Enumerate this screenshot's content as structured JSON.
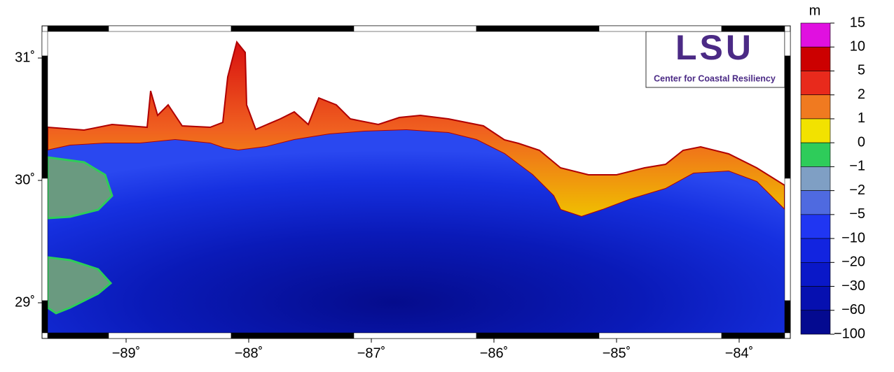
{
  "map": {
    "lon_ticks": [
      {
        "value": -89,
        "label": "−89˚"
      },
      {
        "value": -88,
        "label": "−88˚"
      },
      {
        "value": -87,
        "label": "−87˚"
      },
      {
        "value": -86,
        "label": "−86˚"
      },
      {
        "value": -85,
        "label": "−85˚"
      },
      {
        "value": -84,
        "label": "−84˚"
      }
    ],
    "lat_ticks": [
      {
        "value": 31,
        "label": "31˚"
      },
      {
        "value": 30,
        "label": "30˚"
      },
      {
        "value": 29,
        "label": "29˚"
      }
    ]
  },
  "colorbar": {
    "unit": "m",
    "levels": [
      15,
      10,
      5,
      2,
      1,
      0,
      {
        "value": -1,
        "label": "−1"
      },
      {
        "value": -2,
        "label": "−2"
      },
      {
        "value": -5,
        "label": "−5"
      },
      {
        "value": -10,
        "label": "−10"
      },
      {
        "value": -20,
        "label": "−20"
      },
      {
        "value": -30,
        "label": "−30"
      },
      {
        "value": -60,
        "label": "−60"
      },
      {
        "value": -100,
        "label": "−100"
      }
    ],
    "colors": [
      "#e010e0",
      "#cc0000",
      "#e82a1c",
      "#f07a20",
      "#f2e200",
      "#2ecc5a",
      "#7f9fc4",
      "#4f6ae0",
      "#2036f2",
      "#1224e0",
      "#0a18c8",
      "#0610b0",
      "#040a90"
    ]
  },
  "logo": {
    "title": "LSU",
    "subtitle": "Center for Coastal Resiliency"
  }
}
